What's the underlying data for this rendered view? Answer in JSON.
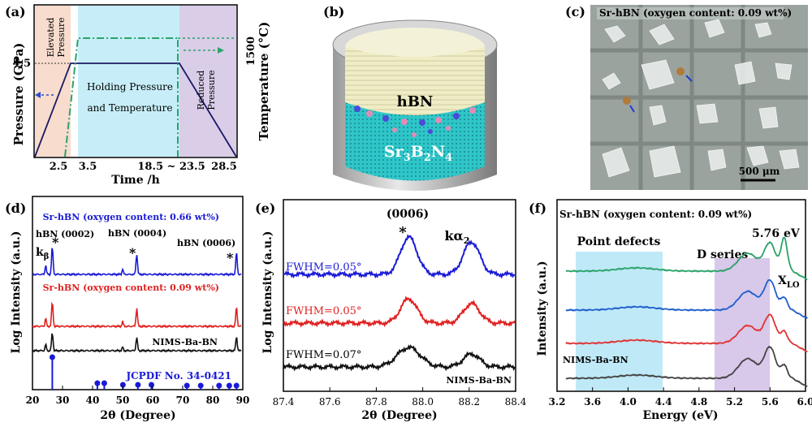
{
  "panels": {
    "a": {
      "label": "(a)",
      "ylabel_left": "Pressure (GPa)",
      "ylabel_right": "Temperature (°C)",
      "y_left_tick": "4.5",
      "y_right_tick": "1500",
      "xlabel": "Time /h",
      "x_ticks": [
        "2.5",
        "3.5",
        "18.5 ~ 23.5",
        "28.5"
      ],
      "region1": "Elevated Pressure",
      "region1_l1": "Elevated",
      "region1_l2": "Pressure",
      "region2_l1": "Holding Pressure",
      "region2_l2": "and Temperature",
      "region3_l1": "Reduced",
      "region3_l2": "Pressure",
      "colors": {
        "elevated": "#f8dccd",
        "holding": "#c7eef8",
        "reduced": "#d9cde8",
        "temp": "#2aa36a",
        "pressure": "#3366cc"
      }
    },
    "b": {
      "label": "(b)",
      "top_material": "hBN",
      "bottom_formula_parts": [
        "Sr",
        "3",
        "B",
        "2",
        "N",
        "4"
      ]
    },
    "c": {
      "label": "(c)",
      "title": "Sr-hBN (oxygen content: 0.09 wt%)",
      "scale_bar": "500 μm"
    },
    "d": {
      "label": "(d)",
      "ylabel": "Log Intensity (a.u.)",
      "xlabel": "2θ (Degree)",
      "peaks": [
        "k",
        "hBN (0002)",
        "hBN (0004)",
        "hBN (0006)"
      ],
      "kbeta_sub": "β",
      "star": "*",
      "traces": [
        {
          "name": "Sr-hBN (oxygen content: 0.66 wt%)",
          "color": "#1a1ad6"
        },
        {
          "name": "Sr-hBN (oxygen content: 0.09 wt%)",
          "color": "#e02020"
        },
        {
          "name": "NIMS-Ba-BN",
          "color": "#111111"
        }
      ],
      "reference": "JCPDF No. 34-0421",
      "x_ticks": [
        "20",
        "30",
        "40",
        "50",
        "60",
        "70",
        "80",
        "90"
      ]
    },
    "e": {
      "label": "(e)",
      "ylabel": "Log Intensity (a.u.)",
      "xlabel": "2θ (Degree)",
      "peak_label": "(0006)",
      "star": "*",
      "kalpha": "kα",
      "kalpha_sub": "2",
      "fwhm": [
        "FWHM=0.05°",
        "FWHM=0.05°",
        "FWHM=0.07°"
      ],
      "sample": "NIMS-Ba-BN",
      "x_ticks": [
        "87.4",
        "87.6",
        "87.8",
        "88.0",
        "88.2",
        "88.4"
      ]
    },
    "f": {
      "label": "(f)",
      "title": "Sr-hBN (oxygen content: 0.09 wt%)",
      "ylabel": "Intensity (a.u.)",
      "xlabel": "Energy (eV)",
      "peak_energy": "5.76 eV",
      "point_defects": "Point defects",
      "d_series": "D series",
      "xlo": "X",
      "xlo_sub": "LO",
      "sample": "NIMS-Ba-BN",
      "x_ticks": [
        "3.2",
        "3.6",
        "4.0",
        "4.4",
        "4.8",
        "5.2",
        "5.6",
        "6.0"
      ]
    }
  }
}
